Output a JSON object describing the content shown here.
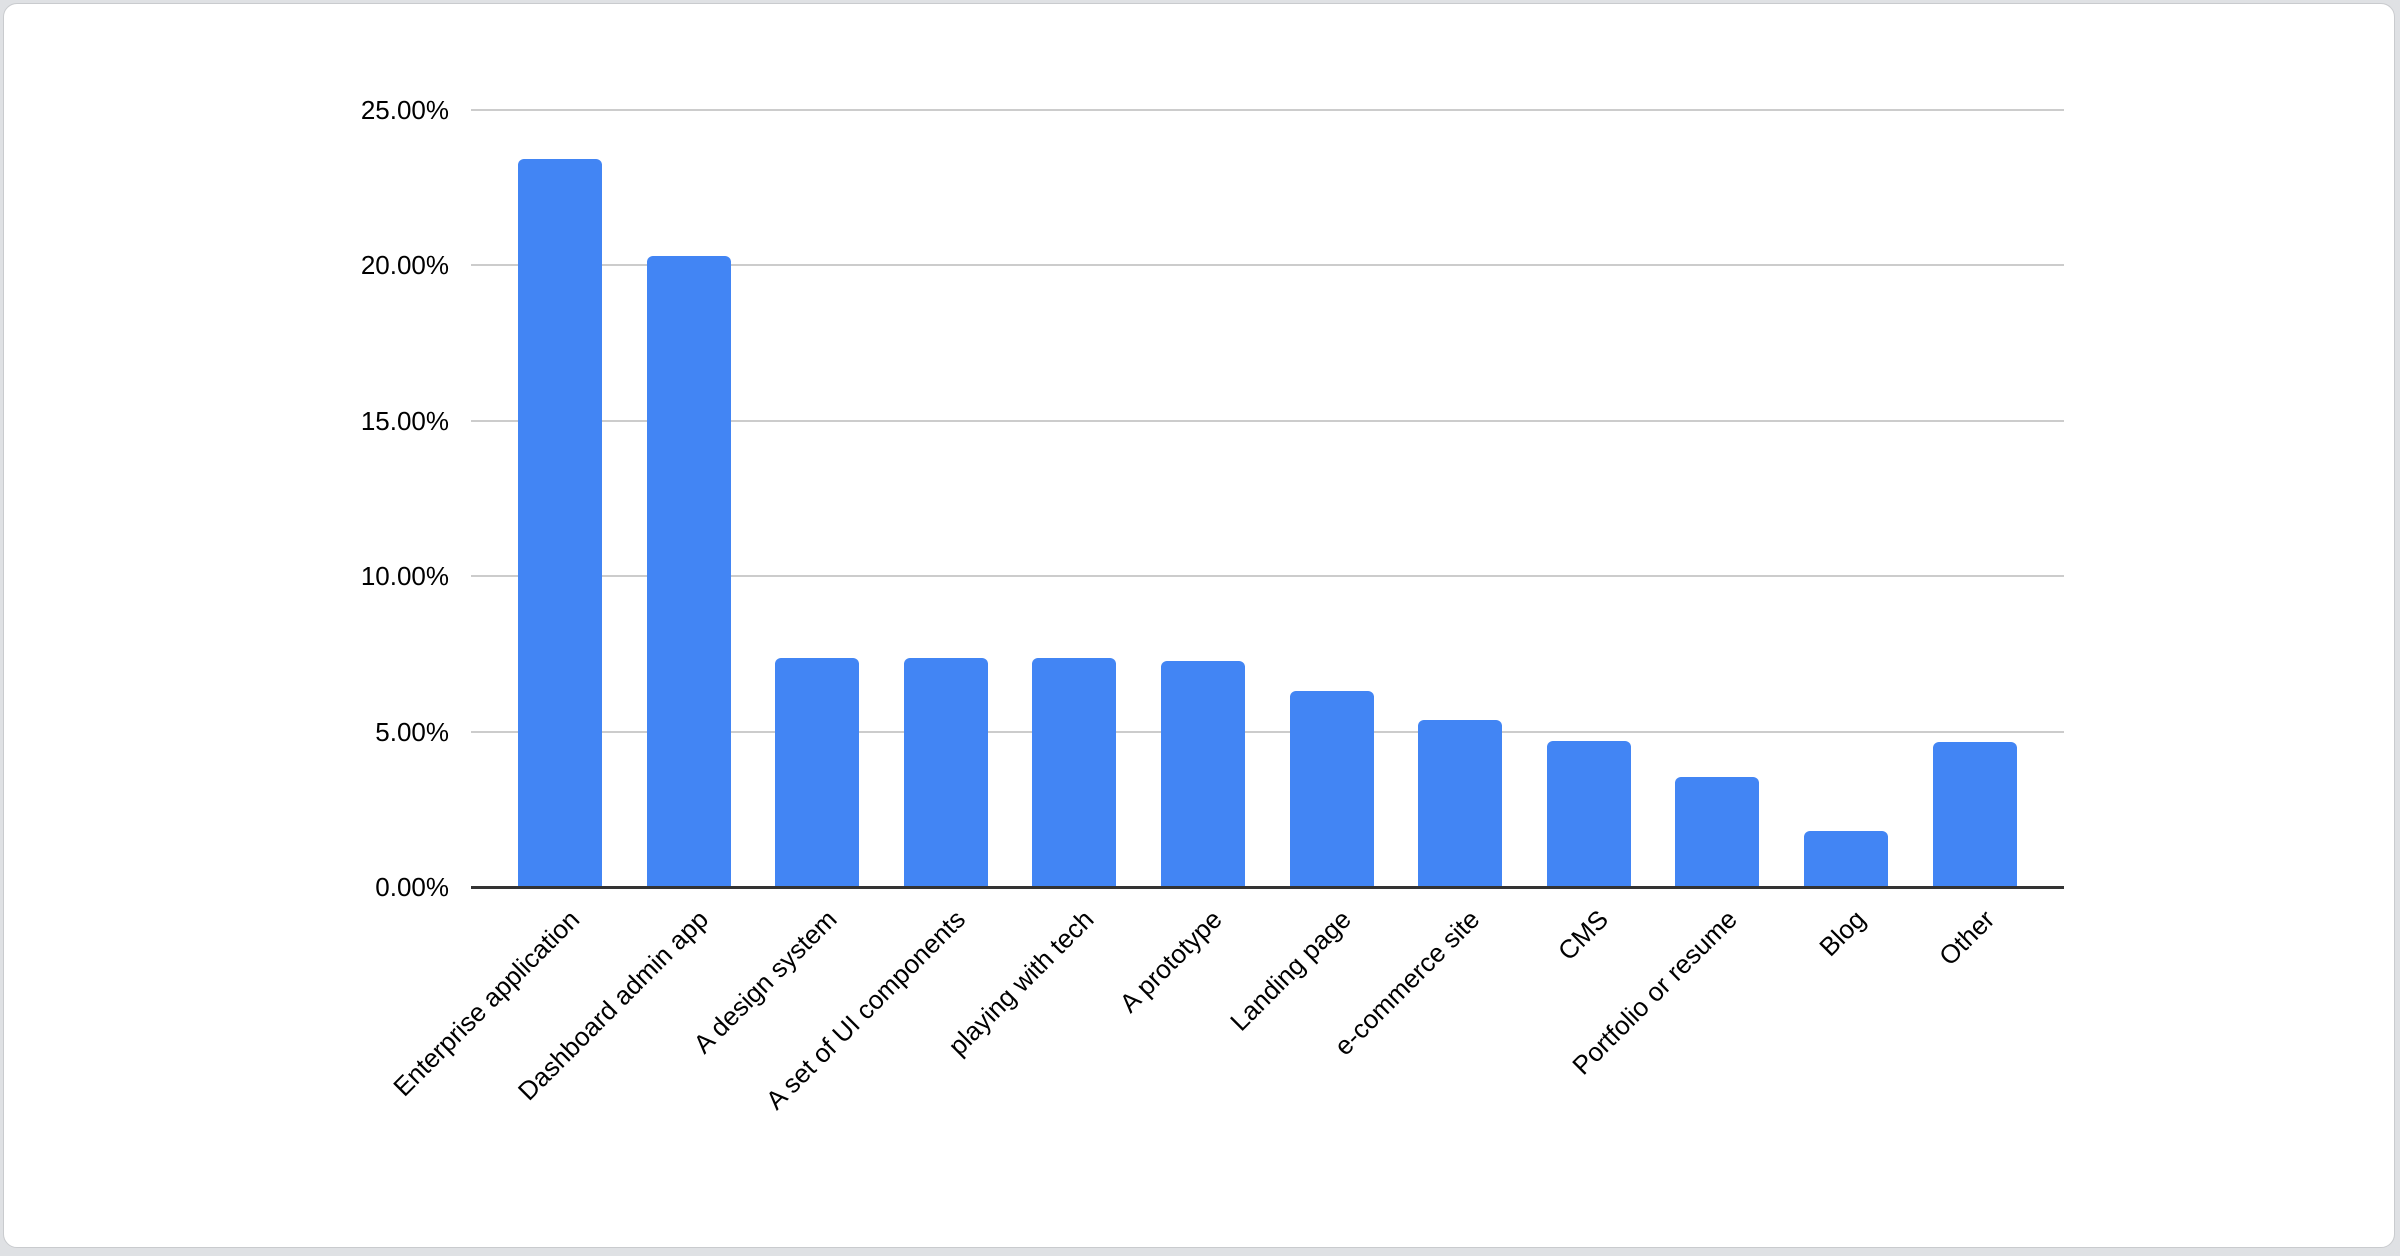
{
  "page": {
    "background_color": "#dfe1e4",
    "card_background": "#ffffff",
    "card_border_color": "#c9cbce"
  },
  "chart_data": {
    "type": "bar",
    "title": "",
    "categories": [
      "Enterprise application",
      "Dashboard admin app",
      "A design system",
      "A set of UI components",
      "playing with tech",
      "A prototype",
      "Landing page",
      "e-commerce site",
      "CMS",
      "Portfolio or resume",
      "Blog",
      "Other"
    ],
    "values": [
      23.42,
      20.3,
      7.37,
      7.37,
      7.37,
      7.28,
      6.31,
      5.36,
      4.71,
      3.53,
      1.81,
      4.66
    ],
    "value_unit": "%",
    "bar_color": "#4285F4",
    "xlabel": "",
    "ylabel": "",
    "ylim": [
      0,
      25
    ],
    "grid": true,
    "legend": "none",
    "axis": {
      "y_ticks": [
        "25.00%",
        "20.00%",
        "15.00%",
        "10.00%",
        "5.00%",
        "0.00%"
      ],
      "y_tick_values": [
        25,
        20,
        15,
        10,
        5,
        0
      ],
      "gridline_color": "#cccccc",
      "baseline_color": "#333333",
      "tick_label_color": "#000000",
      "category_label_rotation_deg": 45
    }
  }
}
